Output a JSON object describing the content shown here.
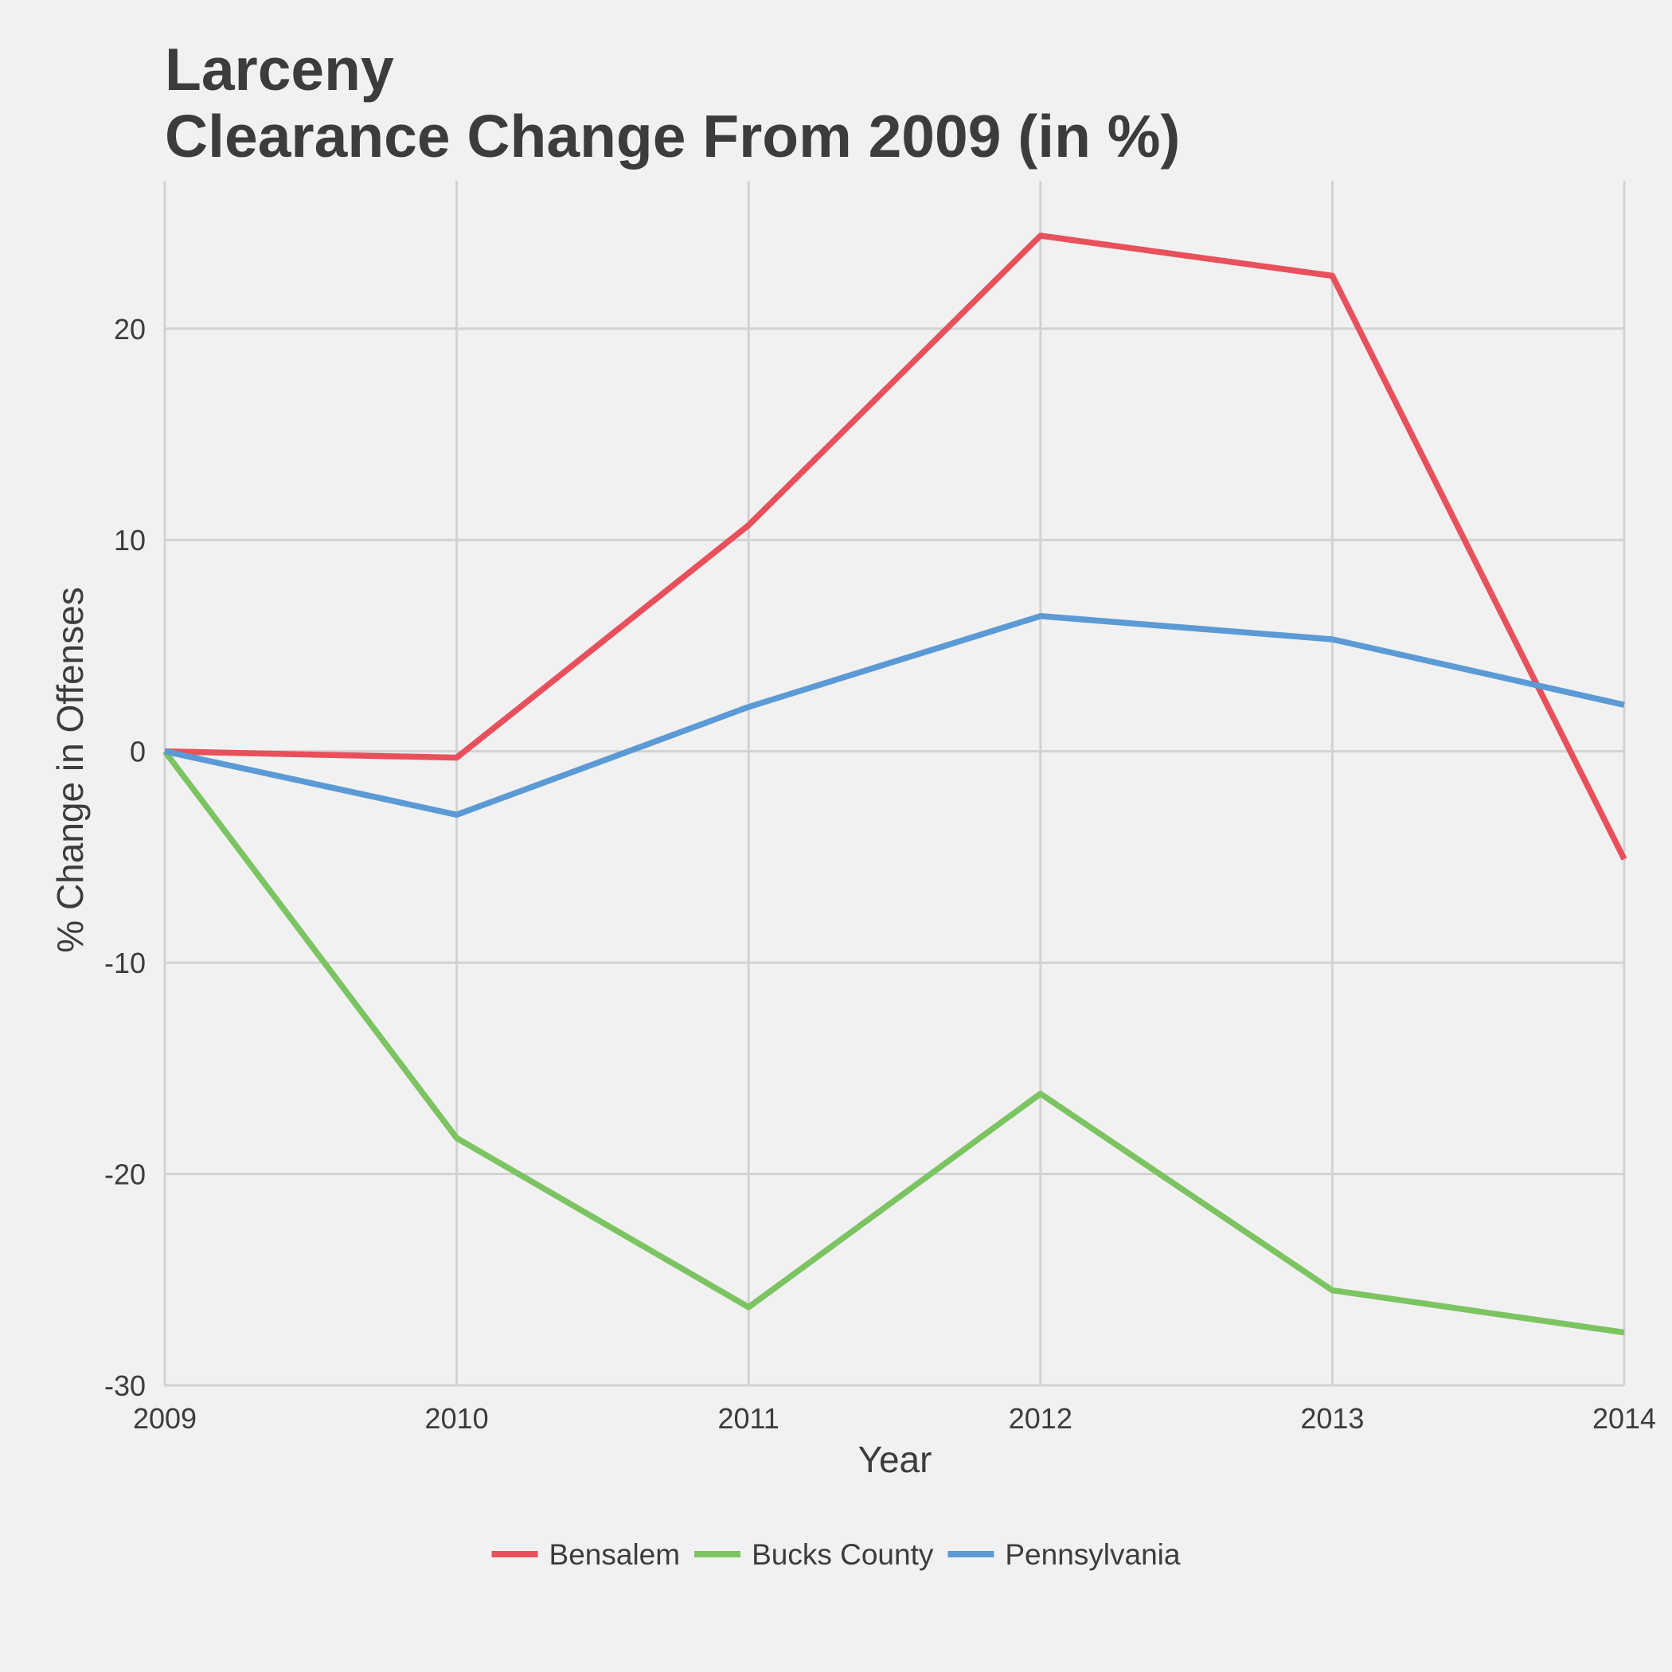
{
  "chart_data": {
    "type": "line",
    "title": "Larceny",
    "subtitle": "Clearance Change From 2009 (in %)",
    "xlabel": "Year",
    "ylabel": "% Change in Offenses",
    "x": [
      2009,
      2010,
      2011,
      2012,
      2013,
      2014
    ],
    "xlim": [
      2009,
      2014
    ],
    "ylim": [
      -30,
      27
    ],
    "x_ticks": [
      "2009",
      "2010",
      "2011",
      "2012",
      "2013",
      "2014"
    ],
    "y_ticks": [
      -30,
      -20,
      -10,
      0,
      10,
      20
    ],
    "y_tick_labels": [
      "-30",
      "-20",
      "-10",
      "0",
      "10",
      "20"
    ],
    "grid": true,
    "legend_position": "bottom",
    "series": [
      {
        "name": "Bensalem",
        "color": "#e8505b",
        "values": [
          0,
          -0.3,
          10.7,
          24.4,
          22.5,
          -5.1
        ]
      },
      {
        "name": "Bucks County",
        "color": "#7cc462",
        "values": [
          0,
          -18.3,
          -26.3,
          -16.2,
          -25.5,
          -27.5
        ]
      },
      {
        "name": "Pennsylvania",
        "color": "#5b9ad5",
        "values": [
          0,
          -3.0,
          2.1,
          6.4,
          5.3,
          2.2
        ]
      }
    ]
  }
}
